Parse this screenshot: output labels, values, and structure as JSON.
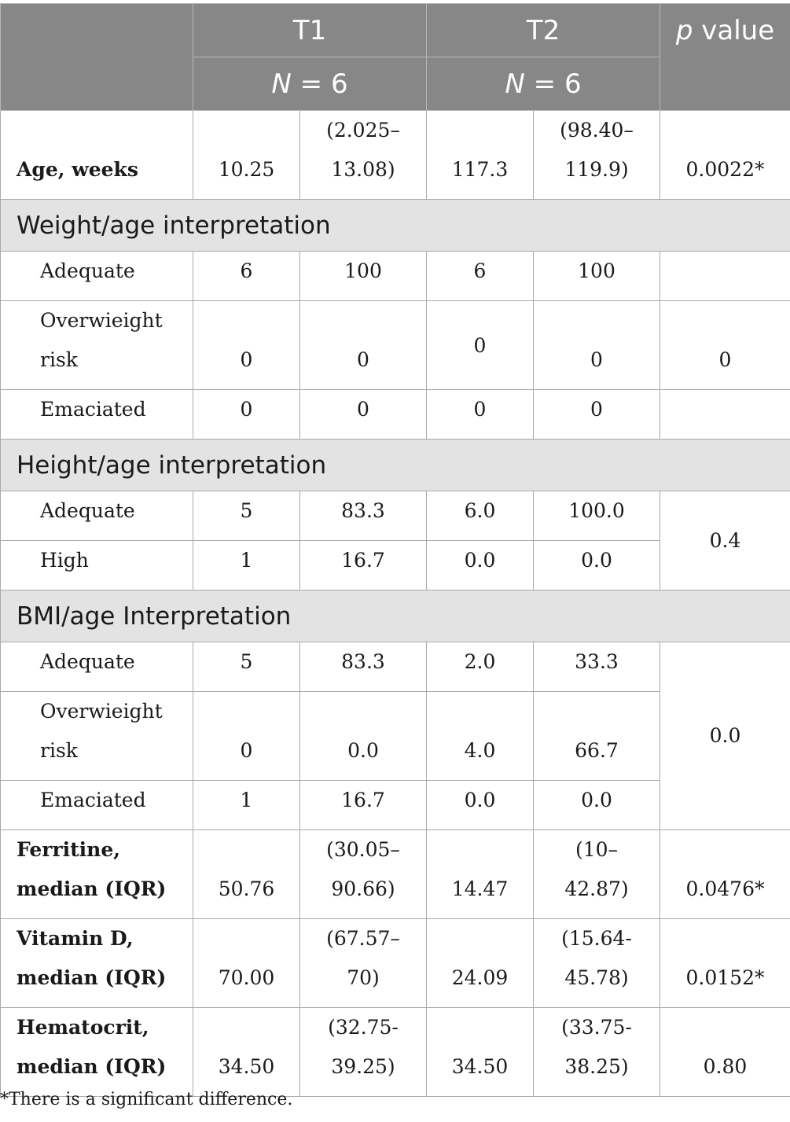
{
  "header": {
    "col_t1": "T1",
    "col_t2": "T2",
    "col_p": "p value",
    "n_t1": "N = 6",
    "n_t2": "N = 6"
  },
  "rows": {
    "age": {
      "label": "Age, weeks",
      "t1": "10.25",
      "t1_iqr": "(2.025–13.08)",
      "t2": "117.3",
      "t2_iqr": "(98.40–119.9)",
      "p": "0.0022*"
    },
    "weight_section": "Weight/age interpretation",
    "weight": [
      {
        "label": "Adequate",
        "t1n": "6",
        "t1p": "100",
        "t2n": "6",
        "t2p": "100",
        "p": ""
      },
      {
        "label": "Overwieight risk",
        "t1n": "0",
        "t1p": "0",
        "t2n": "0",
        "t2p": "0",
        "p": "0"
      },
      {
        "label": "Emaciated",
        "t1n": "0",
        "t1p": "0",
        "t2n": "0",
        "t2p": "0",
        "p": ""
      }
    ],
    "height_section": "Height/age interpretation",
    "height": [
      {
        "label": "Adequate",
        "t1n": "5",
        "t1p": "83.3",
        "t2n": "6.0",
        "t2p": "100.0"
      },
      {
        "label": "High",
        "t1n": "1",
        "t1p": "16.7",
        "t2n": "0.0",
        "t2p": "0.0"
      }
    ],
    "height_p": "0.4",
    "bmi_section": "BMI/age Interpretation",
    "bmi": [
      {
        "label": "Adequate",
        "t1n": "5",
        "t1p": "83.3",
        "t2n": "2.0",
        "t2p": "33.3"
      },
      {
        "label": "Overwieight risk",
        "t1n": "0",
        "t1p": "0.0",
        "t2n": "4.0",
        "t2p": "66.7"
      },
      {
        "label": "Emaciated",
        "t1n": "1",
        "t1p": "16.7",
        "t2n": "0.0",
        "t2p": "0.0"
      }
    ],
    "bmi_p": "0.0",
    "ferritine": {
      "label1": "Ferritine,",
      "label2": "median (IQR)",
      "t1": "50.76",
      "t1_iqr_a": "(30.05–",
      "t1_iqr_b": "90.66)",
      "t2": "14.47",
      "t2_iqr_a": "(10–",
      "t2_iqr_b": "42.87)",
      "p": "0.0476*"
    },
    "vitd": {
      "label1": "Vitamin D,",
      "label2": "median (IQR)",
      "t1": "70.00",
      "t1_iqr_a": "(67.57–",
      "t1_iqr_b": "70)",
      "t2": "24.09",
      "t2_iqr_a": "(15.64-",
      "t2_iqr_b": "45.78)",
      "p": "0.0152*"
    },
    "hema": {
      "label1": "Hematocrit,",
      "label2": "median (IQR)",
      "t1": "34.50",
      "t1_iqr_a": "(32.75-",
      "t1_iqr_b": "39.25)",
      "t2": "34.50",
      "t2_iqr_a": "(33.75-",
      "t2_iqr_b": "38.25)",
      "p": "0.80"
    },
    "age_iqr_split": {
      "t1a": "(2.025–",
      "t1b": "13.08)",
      "t2a": "(98.40–",
      "t2b": "119.9)"
    },
    "ow_label_a": "Overwieight",
    "ow_label_b": "risk"
  },
  "footnote": "*There is a significant difference."
}
